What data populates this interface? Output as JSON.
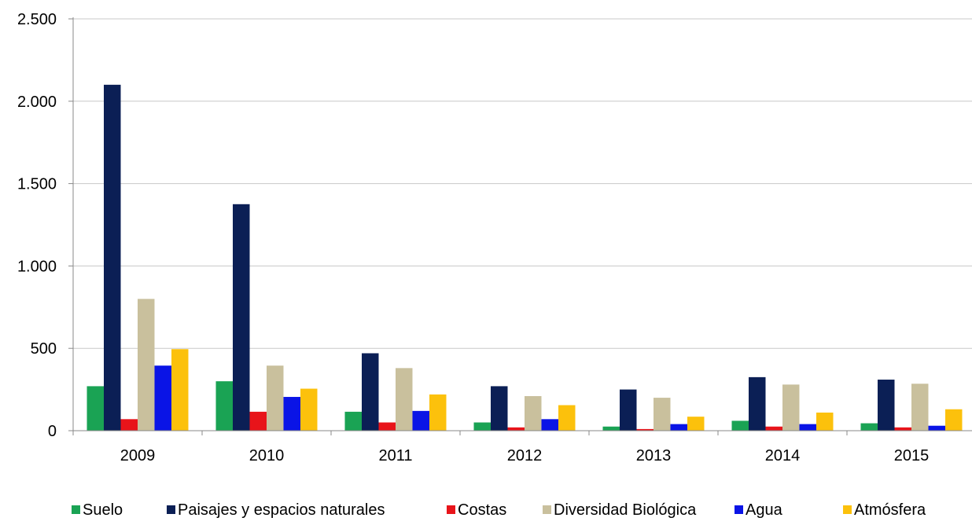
{
  "chart_data": {
    "type": "bar",
    "title": "",
    "xlabel": "",
    "ylabel": "",
    "categories": [
      "2009",
      "2010",
      "2011",
      "2012",
      "2013",
      "2014",
      "2015"
    ],
    "ylim": [
      0,
      2500
    ],
    "yticks": [
      0,
      500,
      1000,
      1500,
      2000,
      2500
    ],
    "ytick_labels": [
      "0",
      "500",
      "1.000",
      "1.500",
      "2.000",
      "2.500"
    ],
    "grid": true,
    "legend_position": "bottom",
    "series": [
      {
        "name": "Suelo",
        "color": "#1aa354",
        "values": [
          270,
          300,
          115,
          50,
          25,
          60,
          45
        ]
      },
      {
        "name": "Paisajes y espacios naturales",
        "color": "#0b1f55",
        "values": [
          2100,
          1375,
          470,
          270,
          250,
          325,
          310
        ]
      },
      {
        "name": "Costas",
        "color": "#e8141a",
        "values": [
          70,
          115,
          50,
          20,
          10,
          25,
          20
        ]
      },
      {
        "name": "Diversidad Biológica",
        "color": "#c9c09d",
        "values": [
          800,
          395,
          380,
          210,
          200,
          280,
          285
        ]
      },
      {
        "name": "Agua",
        "color": "#0a14e6",
        "values": [
          395,
          205,
          120,
          70,
          40,
          40,
          30
        ]
      },
      {
        "name": "Atmósfera",
        "color": "#fcc10c",
        "values": [
          495,
          255,
          220,
          155,
          85,
          110,
          130
        ]
      }
    ]
  }
}
